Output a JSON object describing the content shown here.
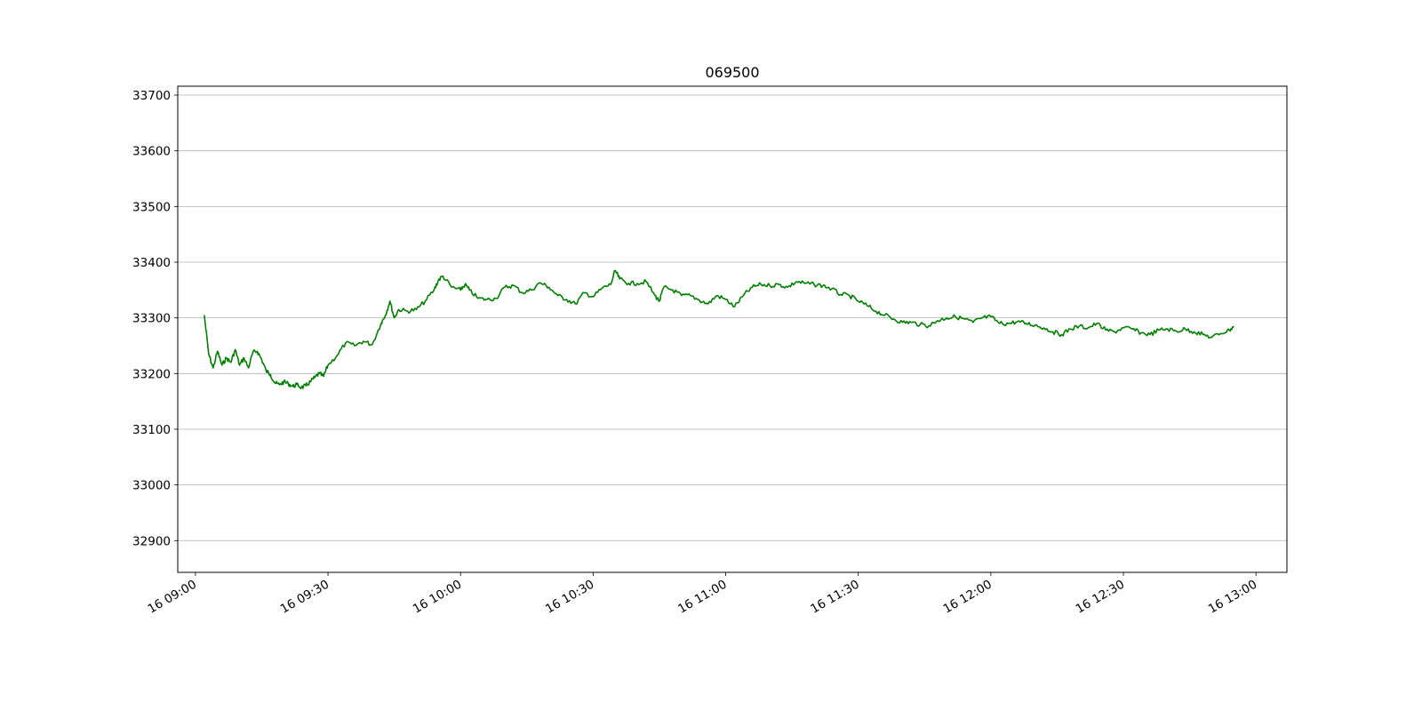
{
  "chart_data": {
    "type": "line",
    "title": "069500",
    "xlabel": "",
    "ylabel": "",
    "ylim": [
      32843,
      33716
    ],
    "xlim": [
      "16 08:56",
      "16 13:07"
    ],
    "grid": "y-only",
    "yticks": [
      32900,
      33000,
      33100,
      33200,
      33300,
      33400,
      33500,
      33600,
      33700
    ],
    "xticks": [
      {
        "t": "16 09:00",
        "label": "16 09:00"
      },
      {
        "t": "16 09:30",
        "label": "16 09:30"
      },
      {
        "t": "16 10:00",
        "label": "16 10:00"
      },
      {
        "t": "16 10:30",
        "label": "16 10:30"
      },
      {
        "t": "16 11:00",
        "label": "16 11:00"
      },
      {
        "t": "16 11:30",
        "label": "16 11:30"
      },
      {
        "t": "16 12:00",
        "label": "16 12:00"
      },
      {
        "t": "16 12:30",
        "label": "16 12:30"
      },
      {
        "t": "16 13:00",
        "label": "16 13:00"
      }
    ],
    "series": [
      {
        "color": "#008000",
        "x": [
          "16 09:02",
          "16 09:03",
          "16 09:04",
          "16 09:05",
          "16 09:06",
          "16 09:07",
          "16 09:08",
          "16 09:09",
          "16 09:10",
          "16 09:11",
          "16 09:12",
          "16 09:13",
          "16 09:14",
          "16 09:15",
          "16 09:16",
          "16 09:17",
          "16 09:18",
          "16 09:19",
          "16 09:20",
          "16 09:21",
          "16 09:22",
          "16 09:23",
          "16 09:24",
          "16 09:25",
          "16 09:26",
          "16 09:27",
          "16 09:28",
          "16 09:29",
          "16 09:30",
          "16 09:32",
          "16 09:34",
          "16 09:36",
          "16 09:38",
          "16 09:40",
          "16 09:42",
          "16 09:43",
          "16 09:44",
          "16 09:45",
          "16 09:46",
          "16 09:48",
          "16 09:50",
          "16 09:52",
          "16 09:54",
          "16 09:55",
          "16 09:56",
          "16 09:58",
          "16 10:00",
          "16 10:01",
          "16 10:02",
          "16 10:04",
          "16 10:06",
          "16 10:08",
          "16 10:10",
          "16 10:12",
          "16 10:14",
          "16 10:16",
          "16 10:18",
          "16 10:20",
          "16 10:22",
          "16 10:24",
          "16 10:26",
          "16 10:28",
          "16 10:30",
          "16 10:32",
          "16 10:34",
          "16 10:35",
          "16 10:36",
          "16 10:38",
          "16 10:40",
          "16 10:42",
          "16 10:44",
          "16 10:45",
          "16 10:46",
          "16 10:48",
          "16 10:50",
          "16 10:52",
          "16 10:54",
          "16 10:56",
          "16 10:58",
          "16 11:00",
          "16 11:02",
          "16 11:04",
          "16 11:06",
          "16 11:08",
          "16 11:10",
          "16 11:12",
          "16 11:14",
          "16 11:16",
          "16 11:18",
          "16 11:20",
          "16 11:22",
          "16 11:24",
          "16 11:26",
          "16 11:28",
          "16 11:30",
          "16 11:32",
          "16 11:34",
          "16 11:36",
          "16 11:38",
          "16 11:40",
          "16 11:42",
          "16 11:44",
          "16 11:46",
          "16 11:48",
          "16 11:50",
          "16 11:52",
          "16 11:54",
          "16 11:56",
          "16 11:58",
          "16 12:00",
          "16 12:02",
          "16 12:04",
          "16 12:06",
          "16 12:08",
          "16 12:10",
          "16 12:12",
          "16 12:14",
          "16 12:16",
          "16 12:18",
          "16 12:20",
          "16 12:22",
          "16 12:24",
          "16 12:26",
          "16 12:28",
          "16 12:30",
          "16 12:32",
          "16 12:34",
          "16 12:36",
          "16 12:38",
          "16 12:40",
          "16 12:42",
          "16 12:44",
          "16 12:46",
          "16 12:48",
          "16 12:50",
          "16 12:52",
          "16 12:54",
          "16 12:55"
        ],
        "values": [
          33305,
          33235,
          33210,
          33240,
          33215,
          33228,
          33220,
          33243,
          33215,
          33228,
          33210,
          33238,
          33240,
          33225,
          33205,
          33198,
          33183,
          33180,
          33185,
          33182,
          33177,
          33180,
          33175,
          33178,
          33185,
          33193,
          33200,
          33195,
          33215,
          33232,
          33255,
          33250,
          33258,
          33252,
          33290,
          33305,
          33330,
          33300,
          33315,
          33312,
          33315,
          33330,
          33350,
          33368,
          33375,
          33355,
          33350,
          33360,
          33350,
          33335,
          33333,
          33335,
          33355,
          33358,
          33345,
          33350,
          33363,
          33355,
          33340,
          33333,
          33325,
          33345,
          33338,
          33353,
          33360,
          33385,
          33370,
          33362,
          33362,
          33365,
          33340,
          33330,
          33355,
          33350,
          33340,
          33340,
          33332,
          33325,
          33340,
          33333,
          33320,
          33340,
          33355,
          33360,
          33358,
          33360,
          33355,
          33365,
          33362,
          33360,
          33358,
          33352,
          33342,
          33340,
          33330,
          33322,
          33312,
          33305,
          33298,
          33292,
          33292,
          33288,
          33286,
          33295,
          33300,
          33302,
          33298,
          33292,
          33300,
          33302,
          33290,
          33290,
          33293,
          33290,
          33287,
          33282,
          33275,
          33270,
          33280,
          33285,
          33282,
          33290,
          33278,
          33275,
          33282,
          33280,
          33273,
          33270,
          33278,
          33280,
          33276,
          33280,
          33275,
          33270,
          33265,
          33272,
          33278,
          33285
        ]
      }
    ]
  }
}
